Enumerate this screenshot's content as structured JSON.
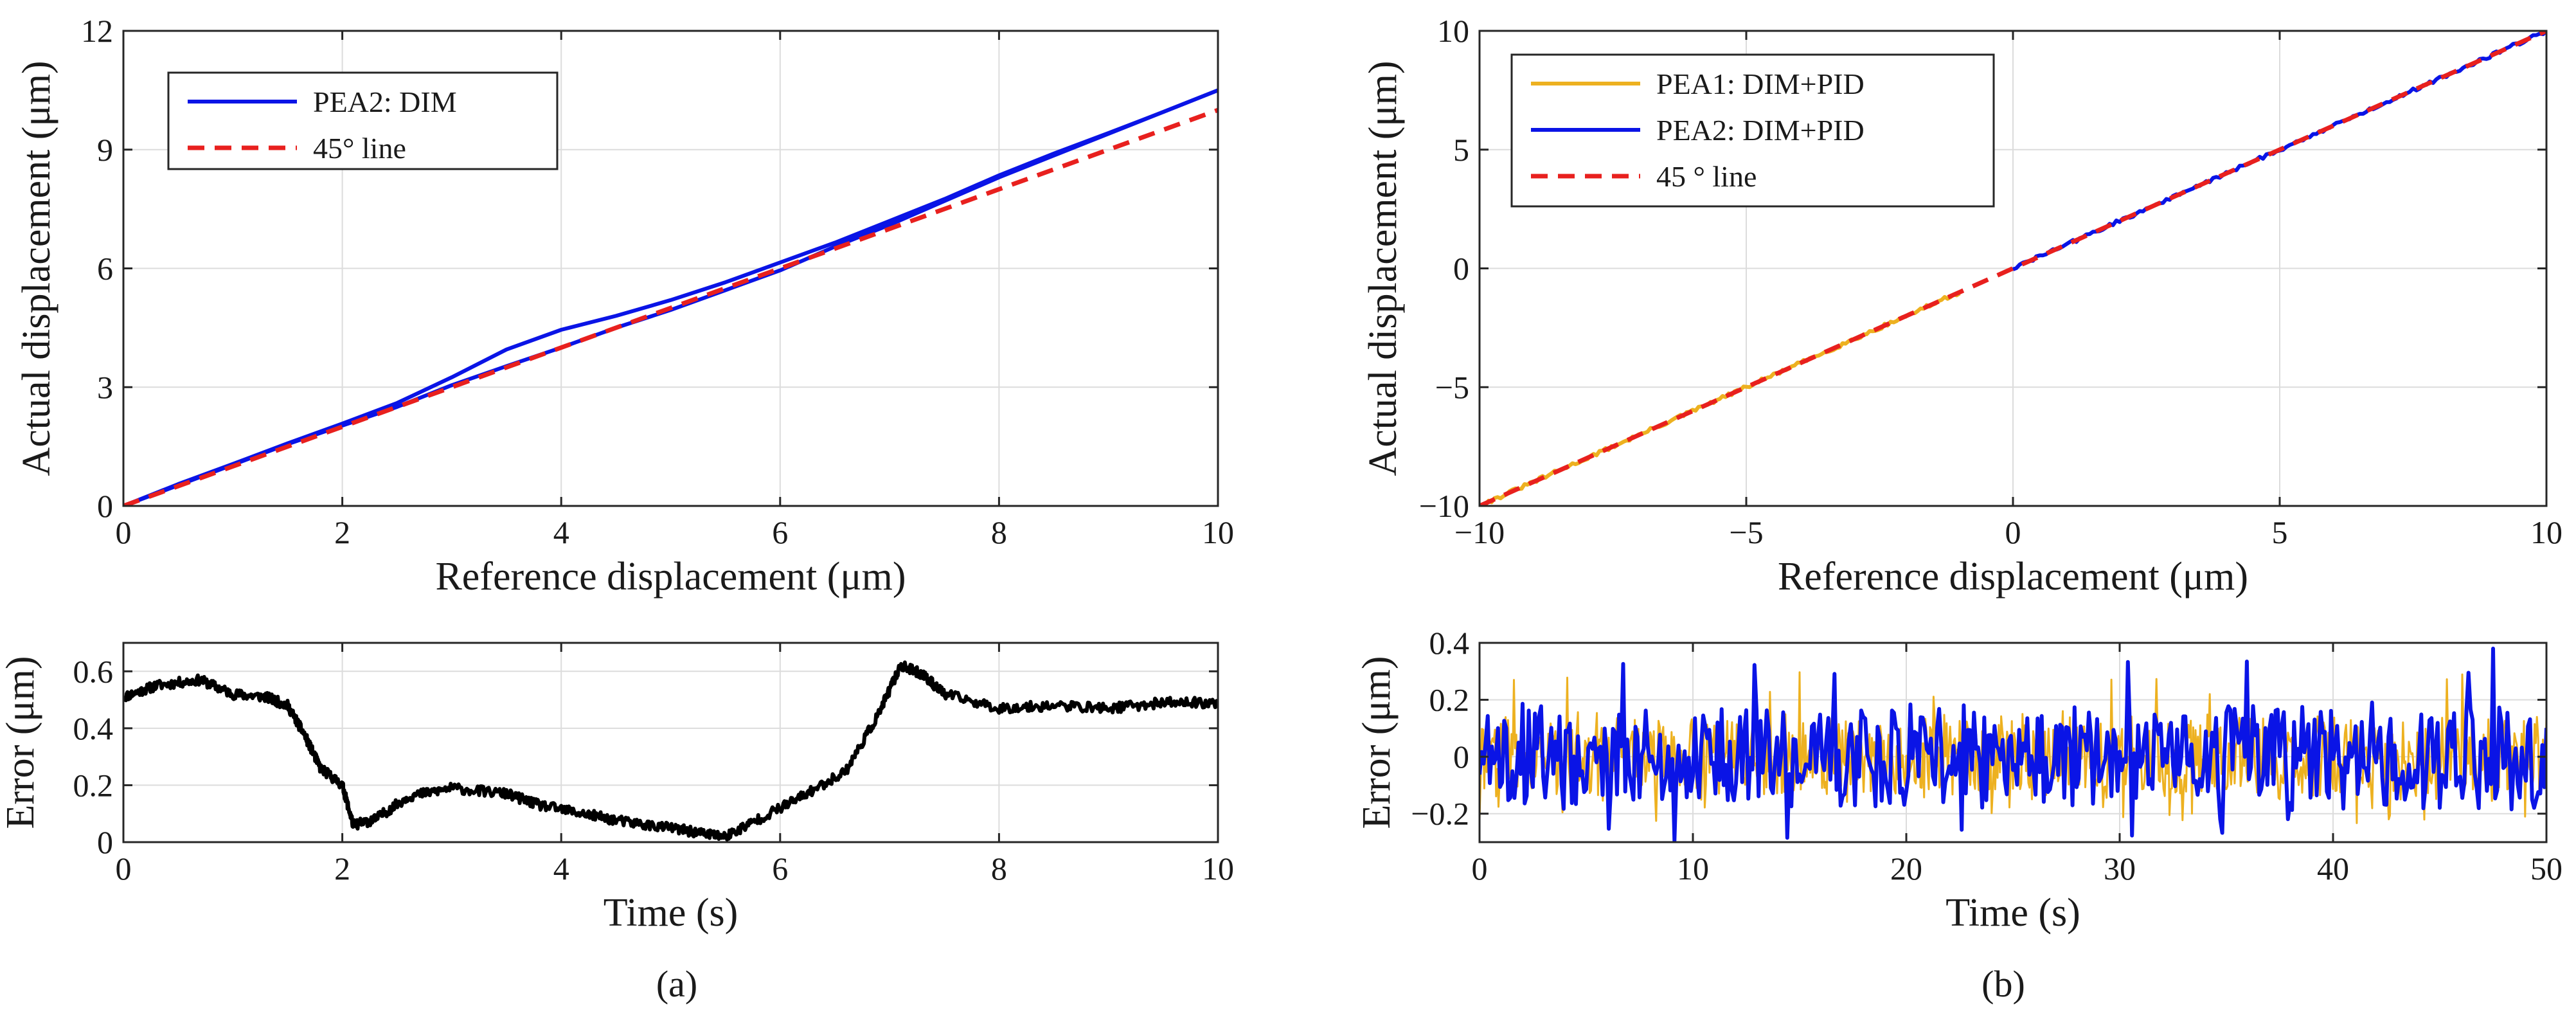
{
  "chart_data": [
    {
      "id": "a_top",
      "type": "line",
      "xlabel": "Reference displacement (μm)",
      "ylabel": "Actual displacement (μm)",
      "xlim": [
        0,
        10
      ],
      "ylim": [
        0,
        12
      ],
      "xticks": [
        0,
        2,
        4,
        6,
        8,
        10
      ],
      "yticks": [
        0,
        3,
        6,
        9,
        12
      ],
      "grid": true,
      "legend_position": "top-left",
      "series": [
        {
          "name": "PEA2: DIM",
          "color": "#0a14e6",
          "style": "solid",
          "x": [
            0,
            0.5,
            1,
            1.5,
            2,
            2.5,
            3,
            3.5,
            4,
            4.5,
            5,
            5.5,
            6,
            6.5,
            7,
            7.5,
            8,
            8.5,
            9,
            9.5,
            10
          ],
          "y": [
            0,
            0.52,
            1.04,
            1.56,
            2.03,
            2.5,
            3.05,
            3.53,
            4.0,
            4.5,
            4.95,
            5.45,
            5.95,
            6.55,
            7.1,
            7.7,
            8.3,
            8.85,
            9.4,
            9.95,
            10.5
          ]
        },
        {
          "name": "PEA2: DIM",
          "color": "#0a14e6",
          "style": "solid",
          "legend": false,
          "x": [
            0,
            0.5,
            1,
            1.5,
            2,
            2.5,
            3,
            3.5,
            4,
            4.5,
            5,
            5.5,
            6,
            6.5,
            7,
            7.5,
            8,
            8.5,
            9,
            9.5,
            10
          ],
          "y": [
            0,
            0.55,
            1.06,
            1.58,
            2.08,
            2.6,
            3.25,
            3.95,
            4.45,
            4.8,
            5.2,
            5.65,
            6.15,
            6.65,
            7.2,
            7.75,
            8.35,
            8.9,
            9.42,
            9.95,
            10.5
          ]
        },
        {
          "name": "45° line",
          "color": "#e8201e",
          "style": "dashed",
          "x": [
            0,
            10
          ],
          "y": [
            0,
            10
          ]
        }
      ]
    },
    {
      "id": "a_bottom",
      "type": "line",
      "xlabel": "Time (s)",
      "ylabel": "Error (μm)",
      "xlim": [
        0,
        10
      ],
      "ylim": [
        0,
        0.7
      ],
      "xticks": [
        0,
        2,
        4,
        6,
        8,
        10
      ],
      "yticks": [
        0,
        0.2,
        0.4,
        0.6
      ],
      "grid": true,
      "series": [
        {
          "name": "",
          "color": "#000000",
          "style": "solid",
          "x": [
            0,
            0.3,
            0.7,
            1.0,
            1.3,
            1.5,
            1.65,
            1.8,
            2.0,
            2.1,
            2.3,
            2.6,
            3.0,
            3.5,
            3.8,
            4.2,
            4.6,
            5.0,
            5.3,
            5.5,
            5.8,
            6.2,
            6.6,
            6.9,
            7.1,
            7.3,
            7.5,
            8.0,
            8.5,
            9.0,
            9.5,
            10.0
          ],
          "y": [
            0.51,
            0.55,
            0.57,
            0.52,
            0.51,
            0.48,
            0.38,
            0.26,
            0.2,
            0.06,
            0.08,
            0.16,
            0.19,
            0.17,
            0.13,
            0.1,
            0.07,
            0.05,
            0.03,
            0.02,
            0.08,
            0.16,
            0.25,
            0.45,
            0.62,
            0.59,
            0.52,
            0.47,
            0.48,
            0.47,
            0.49,
            0.49
          ]
        }
      ]
    },
    {
      "id": "b_top",
      "type": "line",
      "xlabel": "Reference displacement (μm)",
      "ylabel": "Actual displacement (μm)",
      "xlim": [
        -10,
        10
      ],
      "ylim": [
        -10,
        10
      ],
      "xticks": [
        -10,
        -5,
        0,
        5,
        10
      ],
      "yticks": [
        -10,
        -5,
        0,
        5,
        10
      ],
      "grid": true,
      "legend_position": "top-left",
      "series": [
        {
          "name": "PEA1: DIM+PID",
          "color": "#edb120",
          "style": "solid",
          "x": [
            -10,
            -1
          ],
          "y": [
            -10,
            -1
          ]
        },
        {
          "name": "PEA2: DIM+PID",
          "color": "#0a14e6",
          "style": "solid",
          "x": [
            0,
            10
          ],
          "y": [
            0,
            10
          ]
        },
        {
          "name": "45 ° line",
          "color": "#e8201e",
          "style": "dashed",
          "x": [
            -10,
            10
          ],
          "y": [
            -10,
            10
          ]
        }
      ]
    },
    {
      "id": "b_bottom",
      "type": "line",
      "xlabel": "Time (s)",
      "ylabel": "Error (μm)",
      "xlim": [
        0,
        50
      ],
      "ylim": [
        -0.3,
        0.4
      ],
      "xticks": [
        0,
        10,
        20,
        30,
        40,
        50
      ],
      "yticks": [
        -0.2,
        0,
        0.2,
        0.4
      ],
      "grid": true,
      "series": [
        {
          "name": "PEA1: DIM+PID",
          "color": "#edb120",
          "style": "solid",
          "amplitude": 0.3,
          "approx_mean": 0,
          "note": "noise-like"
        },
        {
          "name": "PEA2: DIM+PID",
          "color": "#0a14e6",
          "style": "solid",
          "amplitude": 0.38,
          "approx_mean": 0,
          "note": "noise-like"
        }
      ]
    }
  ],
  "captions": {
    "a": "(a)",
    "b": "(b)"
  }
}
